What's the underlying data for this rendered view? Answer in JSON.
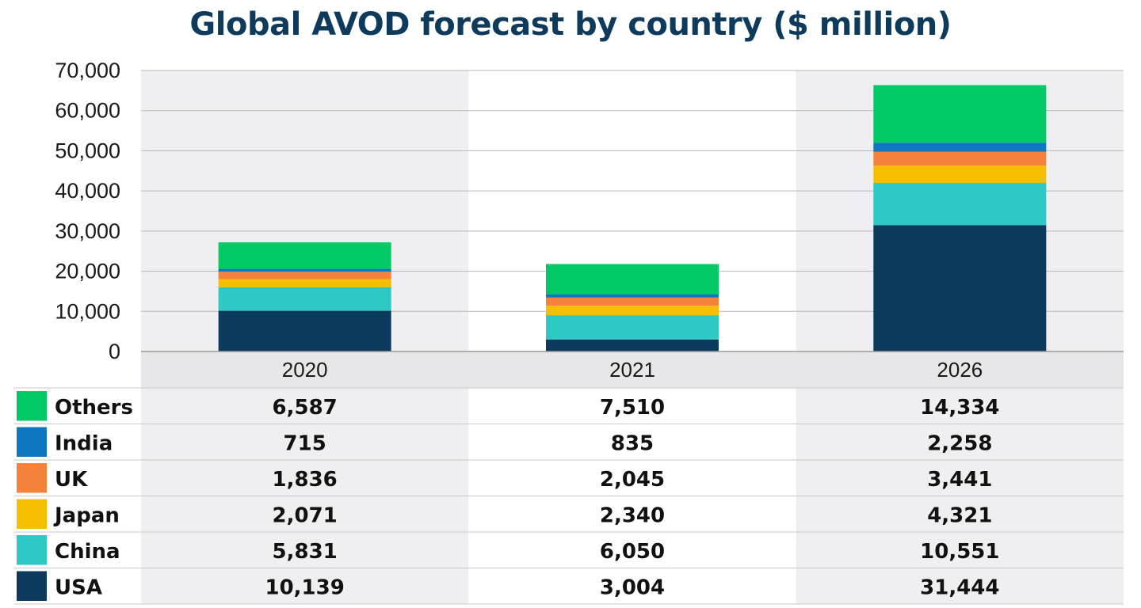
{
  "chart_data": {
    "type": "bar",
    "stacked": true,
    "title": "Global AVOD forecast by country ($ million)",
    "categories": [
      "2020",
      "2021",
      "2026"
    ],
    "ylim": [
      0,
      70000
    ],
    "y_ticks": [
      "0",
      "10,000",
      "20,000",
      "30,000",
      "40,000",
      "50,000",
      "60,000",
      "70,000"
    ],
    "grid": true,
    "legend_position": "bottom-left (data table)",
    "series": [
      {
        "name": "USA",
        "color": "#0b3a5c",
        "values": [
          10139,
          3004,
          31444
        ],
        "labels": [
          "10,139",
          "3,004",
          "31,444"
        ]
      },
      {
        "name": "China",
        "color": "#2ec9c4",
        "values": [
          5831,
          6050,
          10551
        ],
        "labels": [
          "5,831",
          "6,050",
          "10,551"
        ]
      },
      {
        "name": "Japan",
        "color": "#f5bf00",
        "values": [
          2071,
          2340,
          4321
        ],
        "labels": [
          "2,071",
          "2,340",
          "4,321"
        ]
      },
      {
        "name": "UK",
        "color": "#f5823b",
        "values": [
          1836,
          2045,
          3441
        ],
        "labels": [
          "1,836",
          "2,045",
          "3,441"
        ]
      },
      {
        "name": "India",
        "color": "#0f77c2",
        "values": [
          715,
          835,
          2258
        ],
        "labels": [
          "715",
          "835",
          "2,258"
        ]
      },
      {
        "name": "Others",
        "color": "#00c965",
        "values": [
          6587,
          7510,
          14334
        ],
        "labels": [
          "6,587",
          "7,510",
          "14,334"
        ]
      }
    ]
  },
  "colors": {
    "title": "#0e3b5c",
    "band_shade": "#efeff1",
    "x_header_bg": "#e7e7e9",
    "grid": "#b8b8b8"
  }
}
